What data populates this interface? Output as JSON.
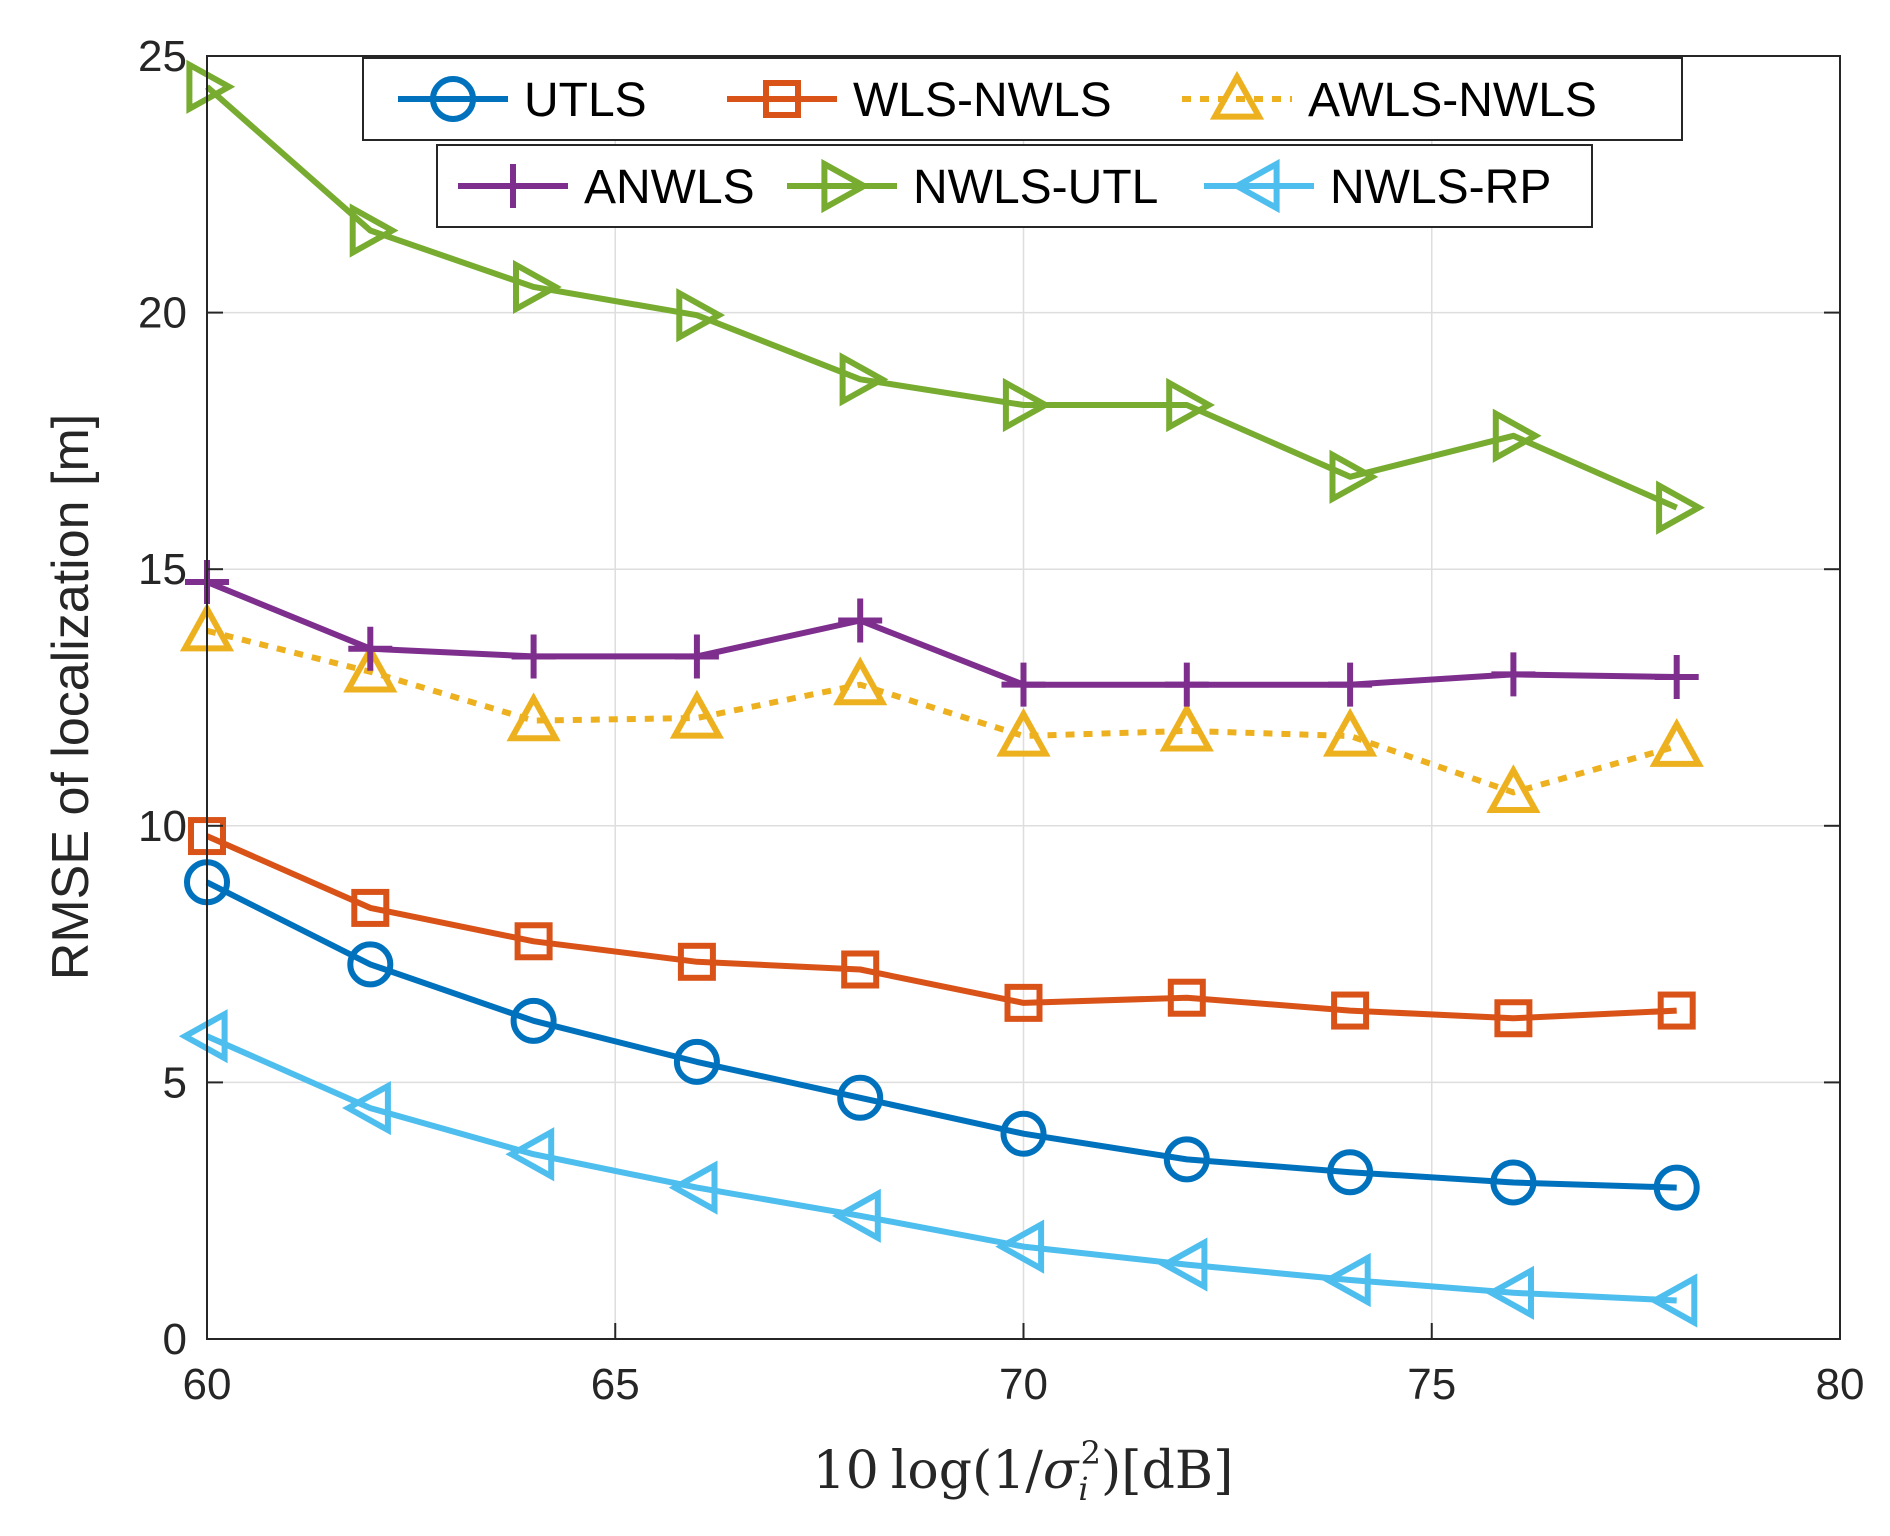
{
  "chart_data": {
    "type": "line",
    "title": "",
    "xlabel": "10 log(1/σi²)[dB]",
    "xlabel_parts": {
      "prefix": "10",
      "func": "log",
      "open": "(1/",
      "sigma": "σ",
      "sub": "i",
      "sup": "2",
      "close": ")",
      "unit": "[dB]"
    },
    "ylabel": "RMSE of localization [m]",
    "xlim": [
      60,
      80
    ],
    "ylim": [
      0,
      25
    ],
    "xticks": [
      60,
      65,
      70,
      75,
      80
    ],
    "yticks": [
      0,
      5,
      10,
      15,
      20,
      25
    ],
    "grid": true,
    "legend_position": "top",
    "x": [
      60,
      62,
      64,
      66,
      68,
      70,
      72,
      74,
      76,
      78
    ],
    "series": [
      {
        "name": "UTLS",
        "color": "#0072BD",
        "marker": "circle",
        "dash": "solid",
        "values": [
          8.9,
          7.3,
          6.2,
          5.4,
          4.7,
          4.0,
          3.5,
          3.25,
          3.05,
          2.95
        ]
      },
      {
        "name": "WLS-NWLS",
        "color": "#D95319",
        "marker": "square",
        "dash": "solid",
        "values": [
          9.8,
          8.4,
          7.75,
          7.35,
          7.2,
          6.55,
          6.65,
          6.4,
          6.25,
          6.4
        ]
      },
      {
        "name": "AWLS-NWLS",
        "color": "#EDB120",
        "marker": "triangle-up",
        "dash": "dotted",
        "values": [
          13.8,
          13.0,
          12.05,
          12.1,
          12.75,
          11.75,
          11.85,
          11.75,
          10.65,
          11.55
        ]
      },
      {
        "name": "ANWLS",
        "color": "#7E2F8E",
        "marker": "plus",
        "dash": "solid",
        "values": [
          14.75,
          13.45,
          13.3,
          13.3,
          14.0,
          12.75,
          12.75,
          12.75,
          12.95,
          12.9
        ]
      },
      {
        "name": "NWLS-UTL",
        "color": "#77AC30",
        "marker": "triangle-right",
        "dash": "solid",
        "values": [
          24.4,
          21.6,
          20.5,
          19.95,
          18.7,
          18.2,
          18.2,
          16.8,
          17.6,
          16.2
        ]
      },
      {
        "name": "NWLS-RP",
        "color": "#4DBEEE",
        "marker": "triangle-left",
        "dash": "solid",
        "values": [
          5.9,
          4.5,
          3.6,
          2.95,
          2.4,
          1.8,
          1.45,
          1.15,
          0.9,
          0.75
        ]
      }
    ]
  }
}
